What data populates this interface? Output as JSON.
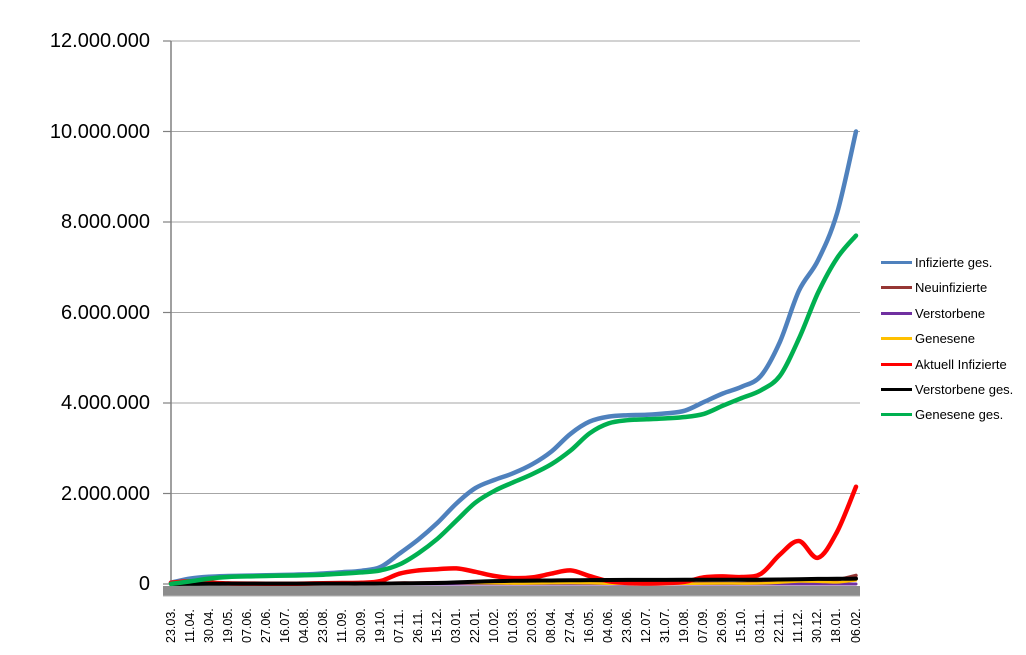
{
  "chart_data": {
    "type": "line",
    "title": "",
    "xlabel": "",
    "ylabel": "",
    "grid": "horizontal",
    "legend_position": "right",
    "y_axis": {
      "min": 0,
      "max": 12000000,
      "step": 2000000
    },
    "y_tick_labels": [
      "12.000.000",
      "10.000.000",
      "8.000.000",
      "6.000.000",
      "4.000.000",
      "2.000.000",
      "0"
    ],
    "x_tick_labels": [
      "23.03.",
      "11.04.",
      "30.04.",
      "19.05.",
      "07.06.",
      "27.06.",
      "16.07.",
      "04.08.",
      "23.08.",
      "11.09.",
      "30.09.",
      "19.10.",
      "07.11.",
      "26.11.",
      "15.12.",
      "03.01.",
      "22.01.",
      "10.02.",
      "01.03.",
      "20.03.",
      "08.04.",
      "27.04.",
      "16.05.",
      "04.06.",
      "23.06.",
      "12.07.",
      "31.07.",
      "19.08.",
      "07.09.",
      "26.09.",
      "15.10.",
      "03.11.",
      "22.11.",
      "11.12.",
      "30.12.",
      "18.01.",
      "06.02."
    ],
    "series": [
      {
        "name": "Infizierte ges.",
        "color": "#4F81BD",
        "width": 4.5,
        "values_million": [
          0.03,
          0.12,
          0.16,
          0.177,
          0.185,
          0.193,
          0.201,
          0.212,
          0.233,
          0.26,
          0.292,
          0.373,
          0.67,
          0.983,
          1.35,
          1.78,
          2.12,
          2.3,
          2.45,
          2.65,
          2.93,
          3.32,
          3.59,
          3.7,
          3.73,
          3.74,
          3.77,
          3.83,
          4.02,
          4.21,
          4.36,
          4.6,
          5.35,
          6.48,
          7.15,
          8.19,
          10.0
        ]
      },
      {
        "name": "Neuinfizierte",
        "color": "#963634",
        "width": 3.5,
        "values_million": [
          0.002,
          0.005,
          0.002,
          0.001,
          0.0004,
          0.0004,
          0.0004,
          0.001,
          0.0014,
          0.0016,
          0.002,
          0.007,
          0.023,
          0.022,
          0.03,
          0.022,
          0.017,
          0.009,
          0.008,
          0.017,
          0.025,
          0.024,
          0.011,
          0.004,
          0.001,
          0.001,
          0.002,
          0.009,
          0.014,
          0.01,
          0.012,
          0.034,
          0.064,
          0.058,
          0.04,
          0.09,
          0.19
        ]
      },
      {
        "name": "Verstorbene",
        "color": "#7030A0",
        "width": 3,
        "values_million": [
          0.0002,
          0.0002,
          0.0002,
          0.0001,
          0.0001,
          0.0001,
          0.0001,
          0.0001,
          0.0001,
          0.0001,
          0.0001,
          0.0002,
          0.0004,
          0.0008,
          0.0008,
          0.0009,
          0.0008,
          0.0006,
          0.0004,
          0.0003,
          0.0003,
          0.0003,
          0.0002,
          0.0002,
          0.0001,
          0.0001,
          0.0001,
          0.0001,
          0.0001,
          0.0001,
          0.0001,
          0.0002,
          0.0003,
          0.0004,
          0.0004,
          0.0002,
          0.0002
        ]
      },
      {
        "name": "Genesene",
        "color": "#FFC000",
        "width": 2.5,
        "values_million": [
          0.002,
          0.004,
          0.003,
          0.002,
          0.001,
          0.0008,
          0.0008,
          0.001,
          0.0012,
          0.0015,
          0.002,
          0.005,
          0.012,
          0.018,
          0.02,
          0.022,
          0.02,
          0.014,
          0.009,
          0.01,
          0.015,
          0.02,
          0.015,
          0.007,
          0.003,
          0.001,
          0.001,
          0.004,
          0.009,
          0.01,
          0.009,
          0.013,
          0.03,
          0.055,
          0.05,
          0.035,
          0.08
        ]
      },
      {
        "name": "Aktuell Infizierte",
        "color": "#FF0000",
        "width": 4.5,
        "values_million": [
          0.026,
          0.06,
          0.034,
          0.014,
          0.008,
          0.007,
          0.006,
          0.009,
          0.018,
          0.021,
          0.026,
          0.063,
          0.227,
          0.3,
          0.327,
          0.345,
          0.269,
          0.176,
          0.13,
          0.146,
          0.23,
          0.3,
          0.174,
          0.061,
          0.022,
          0.012,
          0.021,
          0.048,
          0.145,
          0.167,
          0.155,
          0.225,
          0.65,
          0.95,
          0.58,
          1.15,
          2.15
        ]
      },
      {
        "name": "Verstorbene ges.",
        "color": "#000000",
        "width": 4,
        "values_million": [
          0.0002,
          0.0029,
          0.0066,
          0.008,
          0.0088,
          0.009,
          0.0091,
          0.0092,
          0.0093,
          0.0094,
          0.0095,
          0.0098,
          0.0112,
          0.015,
          0.023,
          0.035,
          0.051,
          0.063,
          0.07,
          0.0745,
          0.078,
          0.082,
          0.086,
          0.089,
          0.0903,
          0.0912,
          0.0916,
          0.0919,
          0.0924,
          0.0933,
          0.0946,
          0.0961,
          0.0994,
          0.106,
          0.112,
          0.116,
          0.1185
        ]
      },
      {
        "name": "Genesene ges.",
        "color": "#00B050",
        "width": 4.5,
        "values_million": [
          0.003,
          0.057,
          0.12,
          0.155,
          0.169,
          0.177,
          0.186,
          0.194,
          0.205,
          0.23,
          0.257,
          0.3,
          0.43,
          0.68,
          1.0,
          1.4,
          1.8,
          2.06,
          2.25,
          2.43,
          2.65,
          2.95,
          3.33,
          3.55,
          3.62,
          3.64,
          3.66,
          3.69,
          3.76,
          3.94,
          4.11,
          4.28,
          4.6,
          5.42,
          6.43,
          7.2,
          7.7
        ]
      }
    ]
  },
  "colors": {
    "background": "#FFFFFF",
    "gridline": "#A6A6A6",
    "axis_line": "#808080",
    "axis_bar": "#8C8C8C",
    "label_text": "#000000"
  }
}
